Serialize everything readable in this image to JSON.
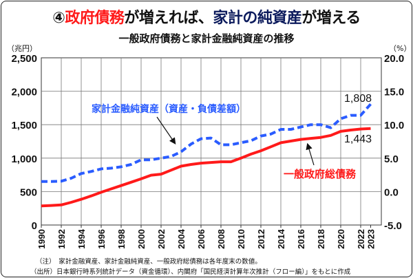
{
  "title": {
    "num": "④",
    "part1": "政府債務",
    "part2": "が増えれば、",
    "part3": "家計の純資産",
    "part4": "が増える"
  },
  "subtitle": "一般政府債務と家計金融純資産の推移",
  "left_unit": "（兆円）",
  "right_unit": "（%）",
  "notes": [
    "（注）　家計金融資産、家計金融純資産、一般政府総債務は各年度末の数値。",
    "（出所）日本銀行時系列統計データ（資金循環）、内閣府「国民経済計算年次推計（フロー編）」をもとに作成"
  ],
  "colors": {
    "household": "#2a5cff",
    "government": "#ff1a1a",
    "title_red": "#ff1a1a",
    "title_navy": "#0b1a5c"
  },
  "chart_data": {
    "type": "line",
    "title": "一般政府債務と家計金融純資産の推移",
    "x": [
      1990,
      1991,
      1992,
      1993,
      1994,
      1995,
      1996,
      1997,
      1998,
      1999,
      2000,
      2001,
      2002,
      2003,
      2004,
      2005,
      2006,
      2007,
      2008,
      2009,
      2010,
      2011,
      2012,
      2013,
      2014,
      2015,
      2016,
      2017,
      2018,
      2019,
      2020,
      2021,
      2022,
      2023
    ],
    "x_ticks": [
      "1990",
      "1992",
      "1994",
      "1996",
      "1998",
      "2000",
      "2002",
      "2004",
      "2006",
      "2008",
      "2010",
      "2012",
      "2014",
      "2016",
      "2018",
      "2020",
      "2022",
      "2023"
    ],
    "ylim": [
      0,
      2500
    ],
    "y_ticks": [
      "0",
      "500",
      "1,000",
      "1,500",
      "2,000",
      "2,500"
    ],
    "y2lim": [
      -5,
      20
    ],
    "y2_ticks": [
      "-5.0",
      "0.0",
      "5.0",
      "10.0",
      "15.0",
      "20.0"
    ],
    "grid": true,
    "series": [
      {
        "name": "家計金融純資産（資産・負債差額）",
        "style": "dashed",
        "values": [
          650,
          650,
          655,
          700,
          770,
          800,
          840,
          850,
          870,
          905,
          975,
          975,
          1000,
          1025,
          1095,
          1210,
          1290,
          1300,
          1200,
          1200,
          1230,
          1260,
          1330,
          1360,
          1430,
          1430,
          1465,
          1500,
          1500,
          1455,
          1590,
          1640,
          1640,
          1808
        ],
        "end_label": "1,808"
      },
      {
        "name": "一般政府総債務",
        "style": "solid",
        "values": [
          285,
          292,
          300,
          340,
          385,
          435,
          490,
          540,
          590,
          640,
          690,
          745,
          760,
          820,
          880,
          905,
          925,
          935,
          945,
          945,
          1000,
          1060,
          1110,
          1170,
          1230,
          1255,
          1280,
          1295,
          1310,
          1340,
          1400,
          1420,
          1435,
          1443
        ],
        "end_label": "1,443"
      }
    ]
  }
}
